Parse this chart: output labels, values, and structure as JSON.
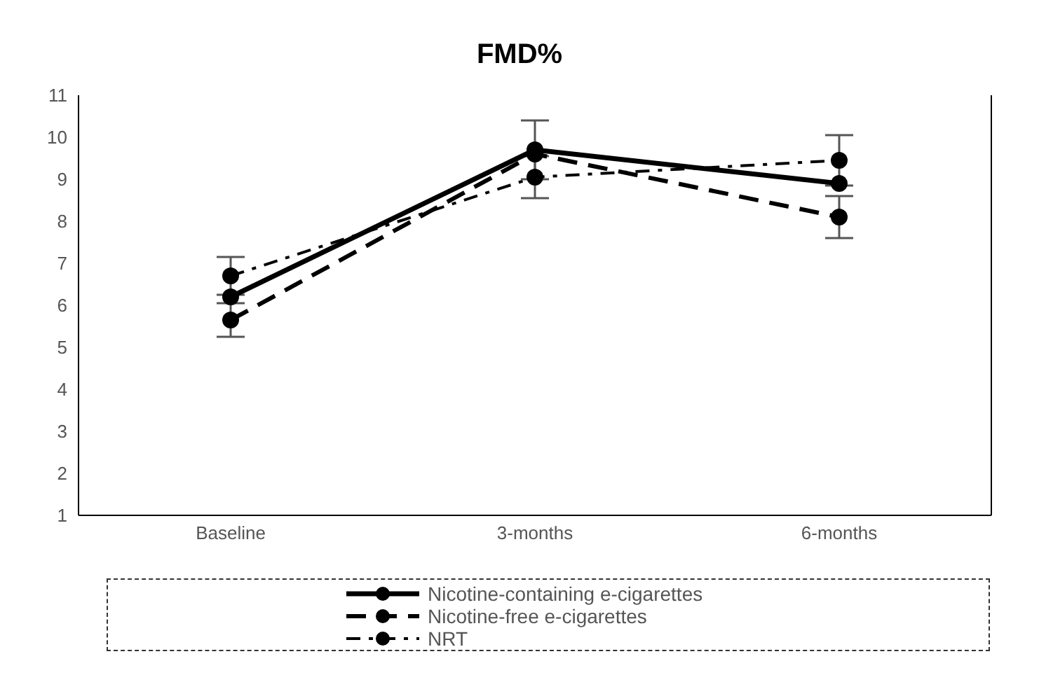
{
  "chart_data": {
    "type": "line",
    "title": "FMD%",
    "categories": [
      "Baseline",
      "3-months",
      "6-months"
    ],
    "series": [
      {
        "name": "Nicotine-containing e-cigarettes",
        "color": "#000000",
        "line_style": "solid",
        "values": [
          6.2,
          9.7,
          8.9
        ],
        "errors": [
          null,
          0.7,
          null
        ]
      },
      {
        "name": "Nicotine-free e-cigarettes",
        "color": "#000000",
        "line_style": "dashed",
        "values": [
          5.65,
          9.6,
          8.1
        ],
        "errors": [
          0.4,
          null,
          0.5
        ]
      },
      {
        "name": "NRT",
        "color": "#000000",
        "line_style": "dotted",
        "values": [
          6.7,
          9.05,
          9.45
        ],
        "errors": [
          0.45,
          0.5,
          0.6
        ]
      }
    ],
    "ylim": [
      1,
      11
    ],
    "yticks": [
      1,
      2,
      3,
      4,
      5,
      6,
      7,
      8,
      9,
      10,
      11
    ],
    "grid": false,
    "legend": "bottom",
    "marker": "circle"
  }
}
